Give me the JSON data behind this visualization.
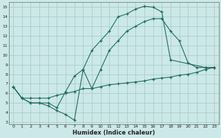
{
  "xlabel": "Humidex (Indice chaleur)",
  "bg_color": "#cce8e8",
  "line_color": "#1a6b5a",
  "grid_color": "#aacccc",
  "xlim": [
    -0.5,
    23.5
  ],
  "ylim": [
    2.8,
    15.5
  ],
  "xticks": [
    0,
    1,
    2,
    3,
    4,
    5,
    6,
    7,
    8,
    9,
    10,
    11,
    12,
    13,
    14,
    15,
    16,
    17,
    18,
    19,
    20,
    21,
    22,
    23
  ],
  "yticks": [
    3,
    4,
    5,
    6,
    7,
    8,
    9,
    10,
    11,
    12,
    13,
    14,
    15
  ],
  "line1_x": [
    0,
    1,
    2,
    3,
    4,
    5,
    6,
    7,
    8,
    9,
    10,
    11,
    12,
    13,
    14,
    15,
    16,
    17,
    18,
    22,
    23
  ],
  "line1_y": [
    6.7,
    5.5,
    5.0,
    5.0,
    4.7,
    4.2,
    3.8,
    3.2,
    8.5,
    10.5,
    11.5,
    12.5,
    14.0,
    14.3,
    14.8,
    15.1,
    15.0,
    14.5,
    9.5,
    8.7,
    8.7
  ],
  "line2_x": [
    0,
    1,
    2,
    3,
    4,
    5,
    6,
    7,
    8,
    9,
    10,
    11,
    12,
    13,
    14,
    15,
    16,
    17,
    18,
    19,
    20,
    21,
    22,
    23
  ],
  "line2_y": [
    6.7,
    5.5,
    5.0,
    5.0,
    5.0,
    4.5,
    6.2,
    7.8,
    8.5,
    6.5,
    8.5,
    10.5,
    11.5,
    12.5,
    13.0,
    13.5,
    13.8,
    13.8,
    12.5,
    11.5,
    9.2,
    8.7,
    8.7,
    8.7
  ],
  "line3_x": [
    0,
    1,
    2,
    3,
    4,
    5,
    6,
    7,
    8,
    9,
    10,
    11,
    12,
    13,
    14,
    15,
    16,
    17,
    18,
    19,
    20,
    21,
    22,
    23
  ],
  "line3_y": [
    6.7,
    5.5,
    5.5,
    5.5,
    5.5,
    5.8,
    6.0,
    6.2,
    6.5,
    6.5,
    6.7,
    6.9,
    7.0,
    7.1,
    7.2,
    7.3,
    7.5,
    7.6,
    7.7,
    7.9,
    8.0,
    8.2,
    8.5,
    8.7
  ]
}
